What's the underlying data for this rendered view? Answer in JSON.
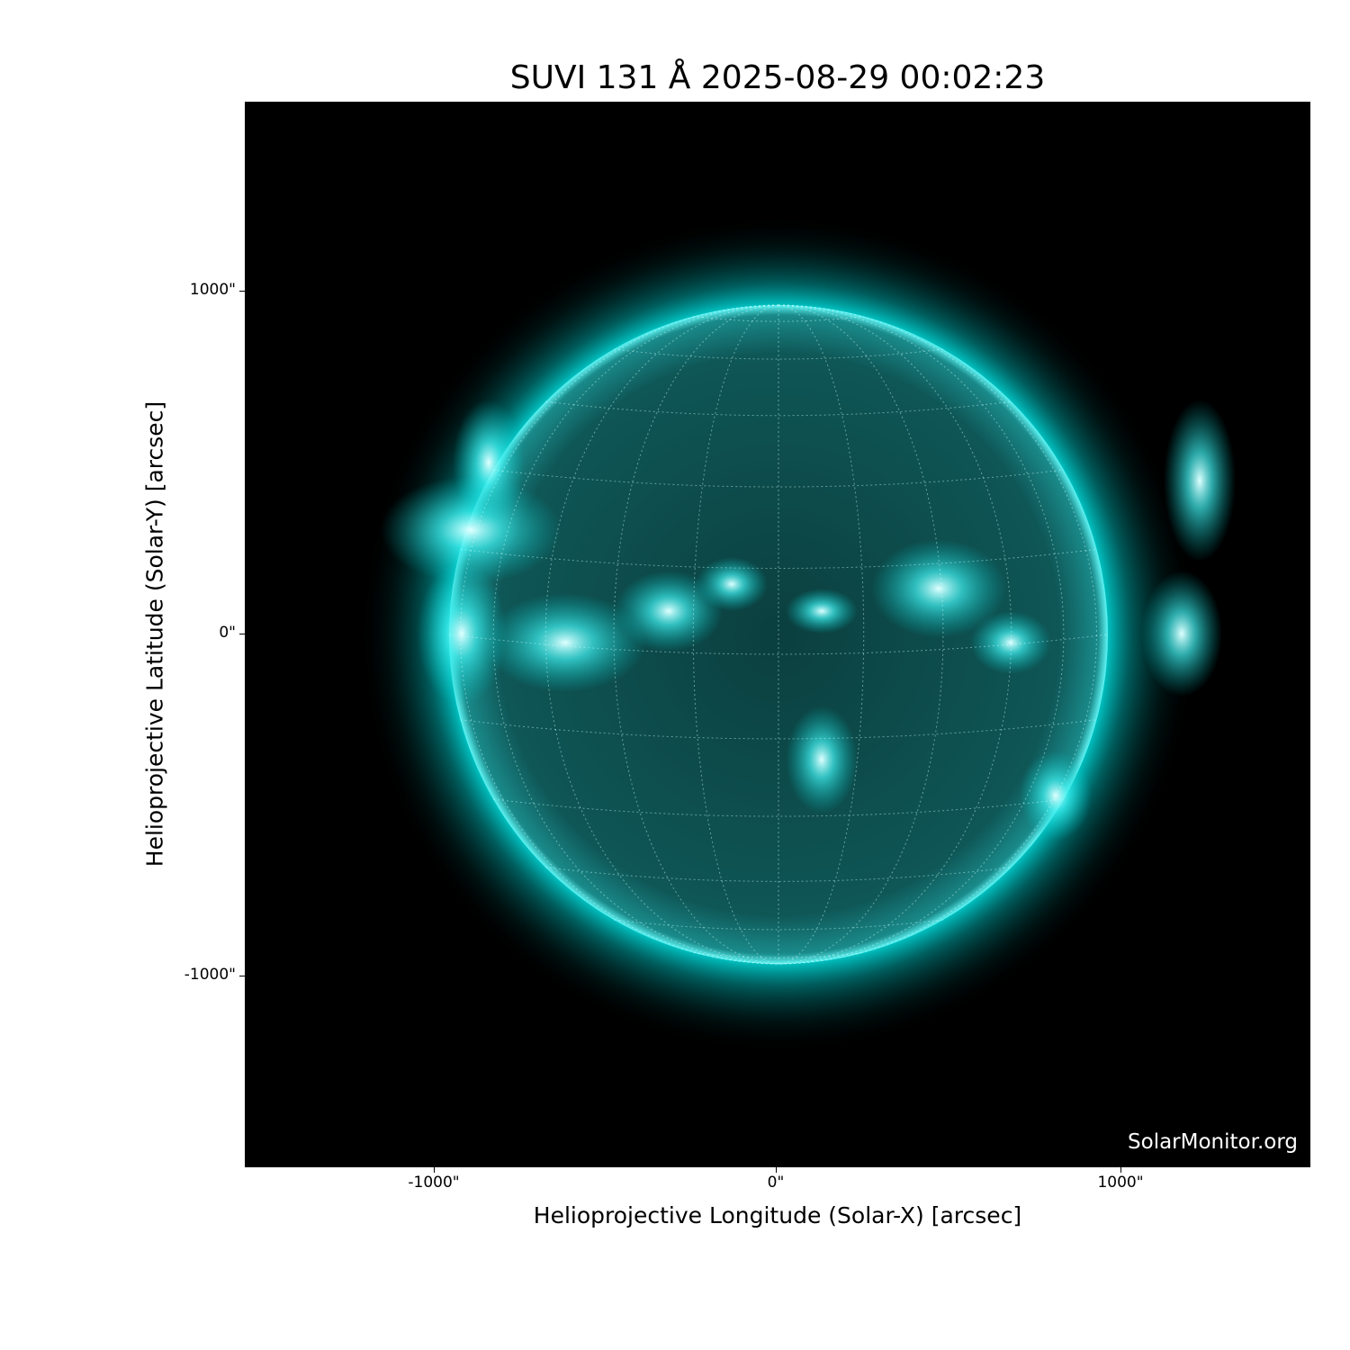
{
  "title": "SUVI 131 Å 2025-08-29 00:02:23",
  "instrument": "SUVI",
  "wavelength": "131 Å",
  "timestamp": "2025-08-29 00:02:23",
  "xlabel": "Helioprojective Longitude (Solar-X) [arcsec]",
  "ylabel": "Helioprojective Latitude (Solar-Y) [arcsec]",
  "x_ticks": [
    "-1000\"",
    "0\"",
    "1000\""
  ],
  "y_ticks": [
    "1000\"",
    "0\"",
    "-1000\""
  ],
  "watermark": "SolarMonitor.org",
  "colors": {
    "disk": "#0f5f5f",
    "corona": "#00e5e5",
    "active_region": "#b8ffff",
    "background": "#000000"
  }
}
